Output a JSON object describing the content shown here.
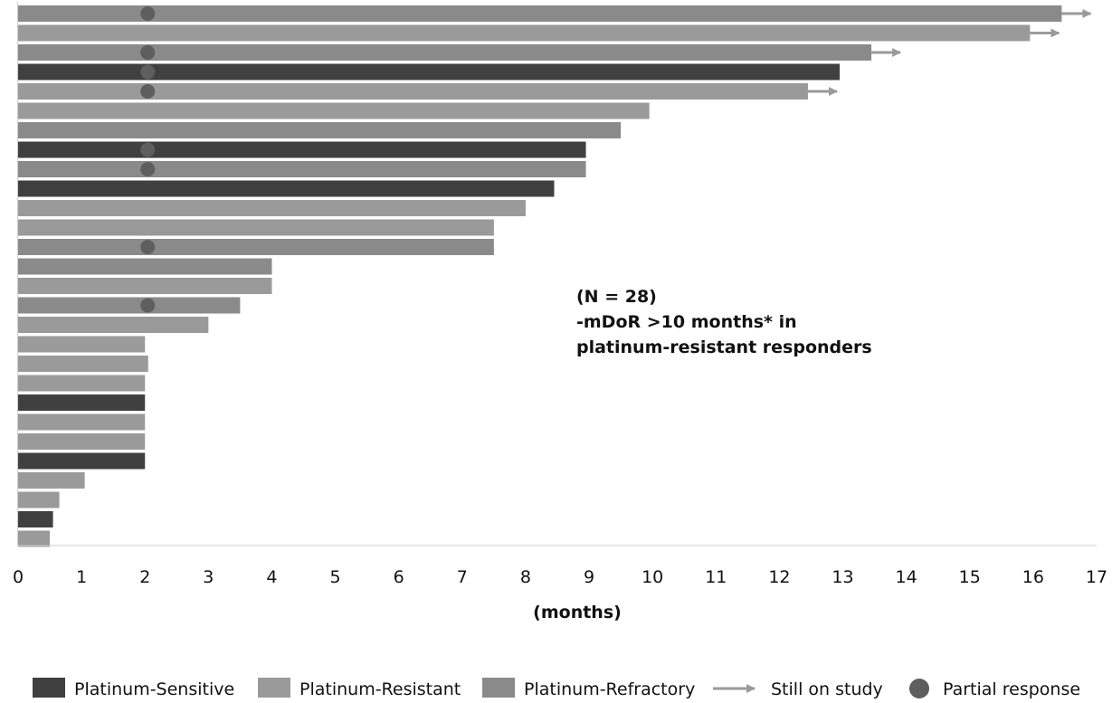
{
  "chart_data": {
    "type": "bar",
    "orientation": "horizontal",
    "xlabel": "(months)",
    "xlim": [
      0,
      17
    ],
    "x_ticks": [
      "0",
      "1",
      "2",
      "3",
      "4",
      "5",
      "6",
      "7",
      "8",
      "9",
      "10",
      "11",
      "12",
      "13",
      "14",
      "15",
      "16",
      "17"
    ],
    "grid": false,
    "annotation": {
      "lines": [
        "(N = 28)",
        "-mDoR >10 months* in",
        "platinum-resistant responders"
      ]
    },
    "colors": {
      "Platinum-Sensitive": "#404040",
      "Platinum-Resistant": "#9a9a9a",
      "Platinum-Refractory": "#8a8a8a",
      "arrow": "#9a9a9a",
      "partial_response": "#5e5e5e"
    },
    "legend": {
      "placement": "bottom",
      "entries": [
        {
          "label": "Platinum-Sensitive",
          "marker": "square",
          "key": "Platinum-Sensitive"
        },
        {
          "label": "Platinum-Resistant",
          "marker": "square",
          "key": "Platinum-Resistant"
        },
        {
          "label": "Platinum-Refractory",
          "marker": "square",
          "key": "Platinum-Refractory"
        },
        {
          "label": "Still on study",
          "marker": "arrow",
          "key": "arrow"
        },
        {
          "label": "Partial response",
          "marker": "circle",
          "key": "partial_response"
        }
      ]
    },
    "bars": [
      {
        "value": 16.45,
        "group": "Platinum-Refractory",
        "still_on_study": true,
        "partial_response_at": 2.0
      },
      {
        "value": 15.95,
        "group": "Platinum-Resistant",
        "still_on_study": true,
        "partial_response_at": null
      },
      {
        "value": 13.45,
        "group": "Platinum-Refractory",
        "still_on_study": true,
        "partial_response_at": 2.0
      },
      {
        "value": 12.95,
        "group": "Platinum-Sensitive",
        "still_on_study": false,
        "partial_response_at": 2.0
      },
      {
        "value": 12.45,
        "group": "Platinum-Resistant",
        "still_on_study": true,
        "partial_response_at": 2.0
      },
      {
        "value": 9.95,
        "group": "Platinum-Resistant",
        "still_on_study": false,
        "partial_response_at": null
      },
      {
        "value": 9.5,
        "group": "Platinum-Refractory",
        "still_on_study": false,
        "partial_response_at": null
      },
      {
        "value": 8.95,
        "group": "Platinum-Sensitive",
        "still_on_study": false,
        "partial_response_at": 2.0
      },
      {
        "value": 8.95,
        "group": "Platinum-Refractory",
        "still_on_study": false,
        "partial_response_at": 2.0
      },
      {
        "value": 8.45,
        "group": "Platinum-Sensitive",
        "still_on_study": false,
        "partial_response_at": null
      },
      {
        "value": 8.0,
        "group": "Platinum-Resistant",
        "still_on_study": false,
        "partial_response_at": null
      },
      {
        "value": 7.5,
        "group": "Platinum-Resistant",
        "still_on_study": false,
        "partial_response_at": null
      },
      {
        "value": 7.5,
        "group": "Platinum-Refractory",
        "still_on_study": false,
        "partial_response_at": 2.0
      },
      {
        "value": 4.0,
        "group": "Platinum-Refractory",
        "still_on_study": false,
        "partial_response_at": null
      },
      {
        "value": 4.0,
        "group": "Platinum-Resistant",
        "still_on_study": false,
        "partial_response_at": null
      },
      {
        "value": 3.5,
        "group": "Platinum-Refractory",
        "still_on_study": false,
        "partial_response_at": 2.0
      },
      {
        "value": 3.0,
        "group": "Platinum-Resistant",
        "still_on_study": false,
        "partial_response_at": null
      },
      {
        "value": 2.0,
        "group": "Platinum-Resistant",
        "still_on_study": false,
        "partial_response_at": null
      },
      {
        "value": 2.05,
        "group": "Platinum-Resistant",
        "still_on_study": false,
        "partial_response_at": null
      },
      {
        "value": 2.0,
        "group": "Platinum-Resistant",
        "still_on_study": false,
        "partial_response_at": null
      },
      {
        "value": 2.0,
        "group": "Platinum-Sensitive",
        "still_on_study": false,
        "partial_response_at": null
      },
      {
        "value": 2.0,
        "group": "Platinum-Resistant",
        "still_on_study": false,
        "partial_response_at": null
      },
      {
        "value": 2.0,
        "group": "Platinum-Resistant",
        "still_on_study": false,
        "partial_response_at": null
      },
      {
        "value": 2.0,
        "group": "Platinum-Sensitive",
        "still_on_study": false,
        "partial_response_at": null
      },
      {
        "value": 1.05,
        "group": "Platinum-Resistant",
        "still_on_study": false,
        "partial_response_at": null
      },
      {
        "value": 0.65,
        "group": "Platinum-Resistant",
        "still_on_study": false,
        "partial_response_at": null
      },
      {
        "value": 0.55,
        "group": "Platinum-Sensitive",
        "still_on_study": false,
        "partial_response_at": null
      },
      {
        "value": 0.5,
        "group": "Platinum-Resistant",
        "still_on_study": false,
        "partial_response_at": null
      }
    ]
  }
}
